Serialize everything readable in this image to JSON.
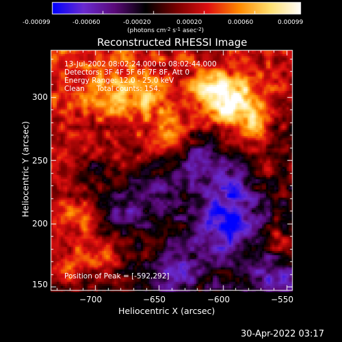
{
  "colorbar": {
    "ticks": [
      "-0.00099",
      "-0.00060",
      "-0.00020",
      "0.00020",
      "0.00060",
      "0.00099"
    ],
    "units_text": "(photons cm",
    "units_exp1": "-2",
    "units_mid": " s",
    "units_exp2": "-1",
    "units_end": " asec",
    "units_exp3": "-2",
    "units_close": ")"
  },
  "title": "Reconstructed RHESSI Image",
  "info": {
    "line1": "13-Jul-2002 08:02:24.000 to 08:02:44.000",
    "line2": "Detectors: 3F 4F 5F 6F 7F 8F, Att 0",
    "line3": "Energy Range: 12.0 - 25.0 keV",
    "line4_a": "Clean",
    "line4_b": "Total counts: 154."
  },
  "peak_text": "Position of Peak = [-592,292]",
  "xlabel": "Heliocentric X (arcsec)",
  "ylabel": "Heliocentric Y (arcsec)",
  "timestamp": "30-Apr-2022 03:17",
  "chart_data": {
    "type": "heatmap",
    "title": "Reconstructed RHESSI Image",
    "xlabel": "Heliocentric X (arcsec)",
    "ylabel": "Heliocentric Y (arcsec)",
    "xlim": [
      -735,
      -545
    ],
    "ylim": [
      147,
      337
    ],
    "x_ticks": [
      -700,
      -650,
      -600,
      -550
    ],
    "x_tick_labels": [
      "−700",
      "−650",
      "−600",
      "−550"
    ],
    "y_ticks": [
      150,
      200,
      250,
      300
    ],
    "y_tick_labels": [
      "150",
      "200",
      "250",
      "300"
    ],
    "color_range": [
      -0.00099,
      0.00099
    ],
    "colormap": [
      "#0000ff",
      "#6a2bd0",
      "#5a0a7a",
      "#000000",
      "#7a0000",
      "#e01010",
      "#ff8a00",
      "#ffe070",
      "#ffffff"
    ],
    "peak": [
      -592,
      292
    ],
    "grid": false
  }
}
